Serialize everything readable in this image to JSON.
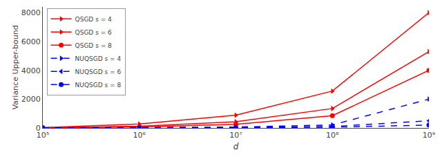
{
  "chart_data": {
    "type": "line",
    "xlabel": "d",
    "ylabel": "Variance Upper-bound",
    "x": [
      100000,
      1000000,
      10000000,
      100000000,
      1000000000
    ],
    "series": [
      {
        "name": "QSGD s = 4",
        "color": "#ff0000",
        "marker": "triangle-right",
        "line_style": "solid",
        "values": [
          28,
          280,
          890,
          2560,
          8000
        ]
      },
      {
        "name": "QSGD s = 6",
        "color": "#ff0000",
        "marker": "triangle-right",
        "line_style": "solid",
        "values": [
          12,
          120,
          430,
          1350,
          5300
        ]
      },
      {
        "name": "QSGD s = 8",
        "color": "#ff0000",
        "marker": "circle",
        "line_style": "solid",
        "values": [
          7,
          70,
          250,
          850,
          4000
        ]
      },
      {
        "name": "NUQSGD s = 4",
        "color": "#0000ff",
        "marker": "triangle-right",
        "line_style": "dash",
        "values": [
          3,
          18,
          60,
          210,
          2000
        ]
      },
      {
        "name": "NUQSGD s = 6",
        "color": "#0000ff",
        "marker": "triangle-left",
        "line_style": "dash",
        "values": [
          1.5,
          9,
          28,
          100,
          500
        ]
      },
      {
        "name": "NUQSGD s = 8",
        "color": "#0000ff",
        "marker": "circle",
        "line_style": "dash",
        "values": [
          0.8,
          5,
          15,
          55,
          200
        ]
      }
    ],
    "log": "x",
    "xlim": [
      100000,
      1000000000
    ],
    "xticks": [
      {
        "value": 100000,
        "label": "10⁵"
      },
      {
        "value": 1000000,
        "label": "10⁶"
      },
      {
        "value": 10000000,
        "label": "10⁷"
      },
      {
        "value": 100000000,
        "label": "10⁸"
      },
      {
        "value": 1000000000,
        "label": "10⁹"
      }
    ],
    "ylim": [
      0,
      8400
    ],
    "yticks": [
      0,
      2000,
      4000,
      6000,
      8000
    ],
    "grid": false,
    "legend": "upper left"
  }
}
